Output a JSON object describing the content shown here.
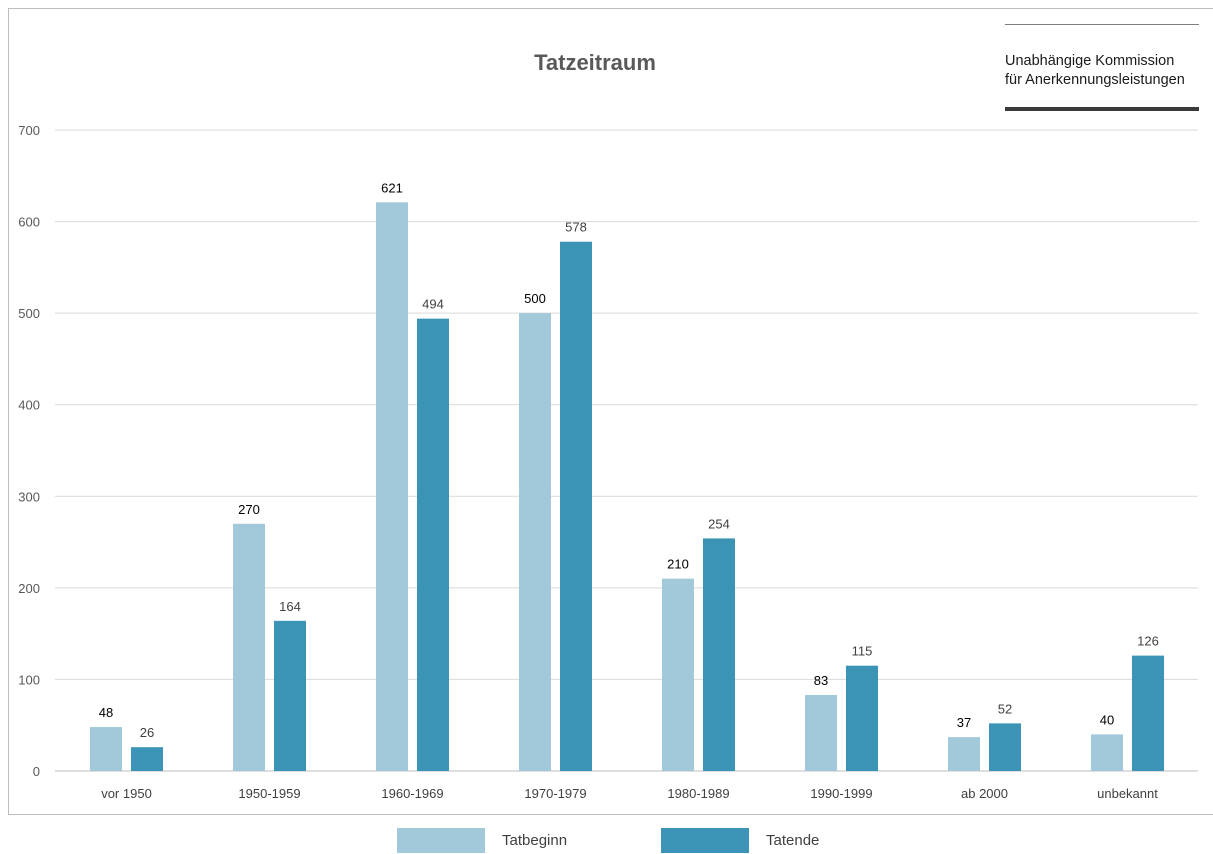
{
  "chart_data": {
    "type": "bar",
    "title": "Tatzeitraum",
    "xlabel": "",
    "ylabel": "",
    "ylim": [
      0,
      700
    ],
    "yticks": [
      0,
      100,
      200,
      300,
      400,
      500,
      600,
      700
    ],
    "grid": true,
    "legend_position": "bottom",
    "categories": [
      "vor 1950",
      "1950-1959",
      "1960-1969",
      "1970-1979",
      "1980-1989",
      "1990-1999",
      "ab 2000",
      "unbekannt"
    ],
    "series": [
      {
        "name": "Tatbeginn",
        "color": "#a2c9d9",
        "values": [
          48,
          270,
          621,
          500,
          210,
          83,
          37,
          40
        ]
      },
      {
        "name": "Tatende",
        "color": "#3b93b5",
        "values": [
          26,
          164,
          494,
          578,
          254,
          115,
          52,
          126
        ]
      }
    ]
  },
  "logo": {
    "line1": "Unabhängige Kommission",
    "line2": "für Anerkennungsleistungen"
  }
}
